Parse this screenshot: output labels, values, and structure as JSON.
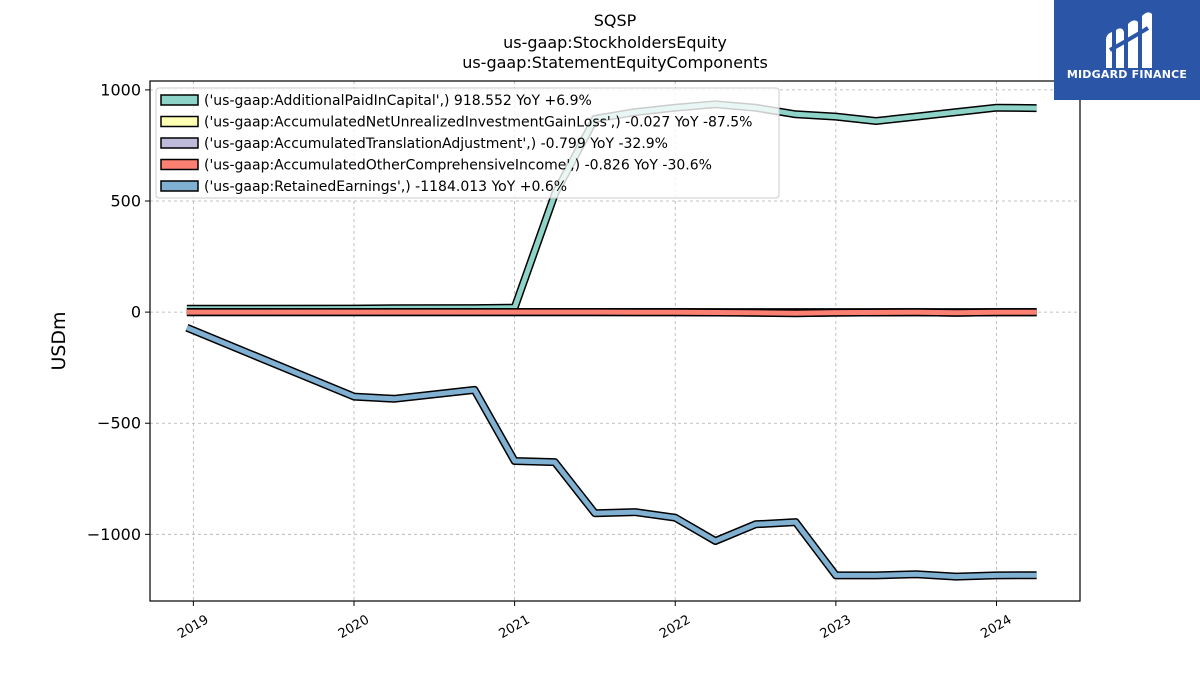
{
  "chart_data": {
    "type": "line",
    "title_lines": [
      "SQSP",
      "us-gaap:StockholdersEquity",
      "us-gaap:StatementEquityComponents"
    ],
    "ylabel": "USDm",
    "ylim": [
      -1300,
      1040
    ],
    "yticks": [
      1000,
      500,
      0,
      -500,
      -1000
    ],
    "ytick_labels": [
      "1000",
      "500",
      "0",
      "−500",
      "−1000"
    ],
    "xlim": [
      2018.73,
      2024.52
    ],
    "xticks": [
      2019,
      2020,
      2021,
      2022,
      2023,
      2024
    ],
    "xtick_labels": [
      "2019",
      "2020",
      "2021",
      "2022",
      "2023",
      "2024"
    ],
    "grid": true,
    "legend_position": "upper left",
    "series": [
      {
        "name": "('us-gaap:AdditionalPaidInCapital',) 918.552 YoY +6.9%",
        "color": "#8dd3c7",
        "x": [
          2018.96,
          2020.0,
          2020.25,
          2020.75,
          2021.0,
          2021.25,
          2021.5,
          2021.75,
          2022.0,
          2022.25,
          2022.5,
          2022.75,
          2023.0,
          2023.25,
          2023.5,
          2023.75,
          2024.0,
          2024.25
        ],
        "y": [
          15,
          16,
          17,
          18,
          20,
          530,
          870,
          900,
          920,
          935,
          920,
          890,
          880,
          860,
          880,
          900,
          920,
          918
        ]
      },
      {
        "name": "('us-gaap:AccumulatedNetUnrealizedInvestmentGainLoss',) -0.027 YoY -87.5%",
        "color": "#ffffb3",
        "x": [
          2018.96,
          2019.5,
          2020.0,
          2020.5,
          2021.0,
          2021.5,
          2022.0,
          2022.5,
          2023.0,
          2023.5,
          2024.0,
          2024.25
        ],
        "y": [
          0,
          0,
          0,
          0,
          0,
          0,
          0,
          0,
          0,
          0,
          0,
          0
        ]
      },
      {
        "name": "('us-gaap:AccumulatedTranslationAdjustment',) -0.799 YoY -32.9%",
        "color": "#bebada",
        "x": [
          2018.96,
          2019.5,
          2020.0,
          2020.5,
          2021.0,
          2021.5,
          2022.0,
          2022.5,
          2022.75,
          2023.0,
          2023.5,
          2023.75,
          2024.0,
          2024.25
        ],
        "y": [
          0,
          0,
          0,
          0,
          0,
          0,
          0,
          -2,
          -4,
          -2,
          -1,
          -3,
          -1,
          -1
        ]
      },
      {
        "name": "('us-gaap:AccumulatedOtherComprehensiveIncome',) -0.826 YoY -30.6%",
        "color": "#fb8072",
        "x": [
          2018.96,
          2019.5,
          2020.0,
          2020.5,
          2021.0,
          2021.5,
          2022.0,
          2022.5,
          2022.75,
          2023.0,
          2023.5,
          2023.75,
          2024.0,
          2024.25
        ],
        "y": [
          0,
          0,
          0,
          0,
          0,
          0,
          -1,
          -3,
          -5,
          -2,
          -1,
          -3,
          -1,
          -1
        ]
      },
      {
        "name": "('us-gaap:RetainedEarnings',) -1184.013 YoY +0.6%",
        "color": "#80b1d3",
        "x": [
          2018.96,
          2020.0,
          2020.25,
          2020.75,
          2021.0,
          2021.25,
          2021.5,
          2021.75,
          2022.0,
          2022.25,
          2022.5,
          2022.75,
          2023.0,
          2023.25,
          2023.5,
          2023.75,
          2024.0,
          2024.25
        ],
        "y": [
          -70,
          -380,
          -390,
          -350,
          -670,
          -675,
          -905,
          -900,
          -925,
          -1030,
          -955,
          -945,
          -1185,
          -1185,
          -1180,
          -1190,
          -1185,
          -1184
        ]
      }
    ]
  },
  "logo": {
    "text": "MIDGARD FINANCE",
    "color": "#2b56a8"
  }
}
